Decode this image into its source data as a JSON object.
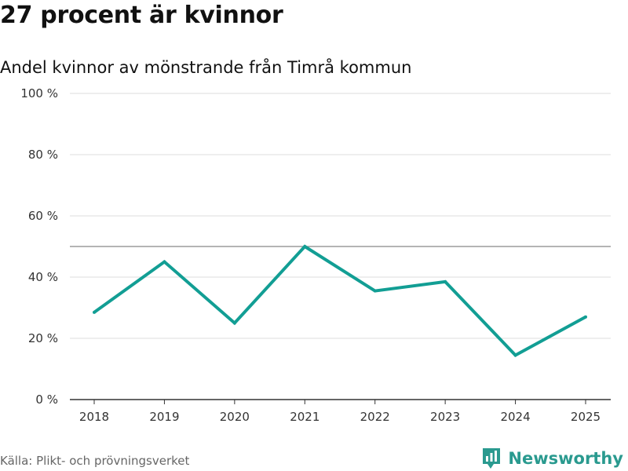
{
  "title": "27 procent är kvinnor",
  "subtitle": "Andel kvinnor av mönstrande från Timrå kommun",
  "source": "Källa: Plikt- och prövningsverket",
  "brand": "Newsworthy",
  "colors": {
    "line": "#129e94",
    "grid": "#dddddd",
    "reference": "#888888",
    "axis": "#333333",
    "brand": "#2a9a8f"
  },
  "chart_data": {
    "type": "line",
    "title": "27 procent är kvinnor",
    "subtitle": "Andel kvinnor av mönstrande från Timrå kommun",
    "xlabel": "",
    "ylabel": "",
    "x": [
      "2018",
      "2019",
      "2020",
      "2021",
      "2022",
      "2023",
      "2024",
      "2025"
    ],
    "series": [
      {
        "name": "Andel kvinnor",
        "values": [
          28.5,
          45,
          25,
          50,
          35.5,
          38.5,
          14.5,
          27
        ]
      }
    ],
    "ylim": [
      0,
      100
    ],
    "yticks": [
      0,
      20,
      40,
      60,
      80,
      100
    ],
    "ytick_labels": [
      "0 %",
      "20 %",
      "40 %",
      "60 %",
      "80 %",
      "100 %"
    ],
    "reference_line": 50,
    "grid": true
  }
}
